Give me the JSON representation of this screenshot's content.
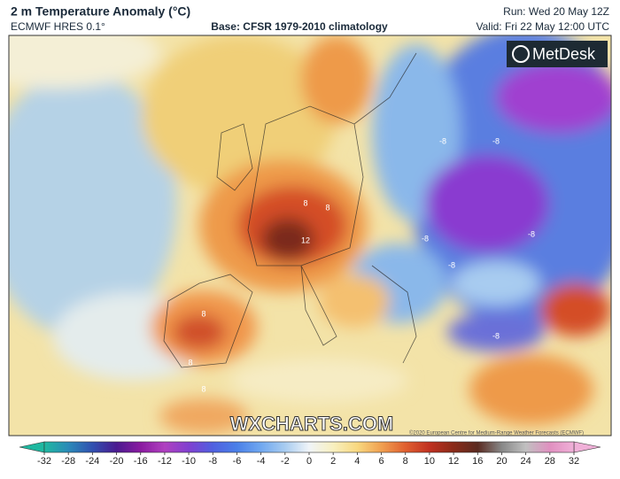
{
  "header": {
    "title": "2 m Temperature Anomaly (°C)",
    "model": "ECMWF HRES 0.1°",
    "base": "Base: CFSR 1979-2010 climatology",
    "run": "Run: Wed 20 May 12Z",
    "valid": "Valid: Fri 22 May 12:00 UTC"
  },
  "logo": "MetDesk",
  "watermark": "WXCHARTS.COM",
  "copyright": "©2020 European Centre for Medium-Range Weather Forecasts (ECMWF)",
  "contour_labels": [
    "-8",
    "-8",
    "-8",
    "-8",
    "8",
    "8",
    "12",
    "8",
    "8",
    "-8",
    "8",
    "-8"
  ],
  "colorbar": {
    "ticks": [
      -32,
      -28,
      -24,
      -20,
      -16,
      -12,
      -10,
      -8,
      -6,
      -4,
      -2,
      0,
      2,
      4,
      6,
      8,
      10,
      12,
      16,
      20,
      24,
      28,
      32
    ],
    "colors": [
      "#1fb8a0",
      "#2a8ab8",
      "#3050b0",
      "#4a1a90",
      "#8a1aa0",
      "#b040c0",
      "#8040d0",
      "#5060e0",
      "#4a80e8",
      "#70a8f0",
      "#a8ccf0",
      "#f0f4f8",
      "#f8f0c0",
      "#f8d880",
      "#f0a050",
      "#e06030",
      "#c03020",
      "#8a2a18",
      "#5a2a20",
      "#888888",
      "#c0c0c0",
      "#e090c0",
      "#f0b0d8"
    ]
  }
}
